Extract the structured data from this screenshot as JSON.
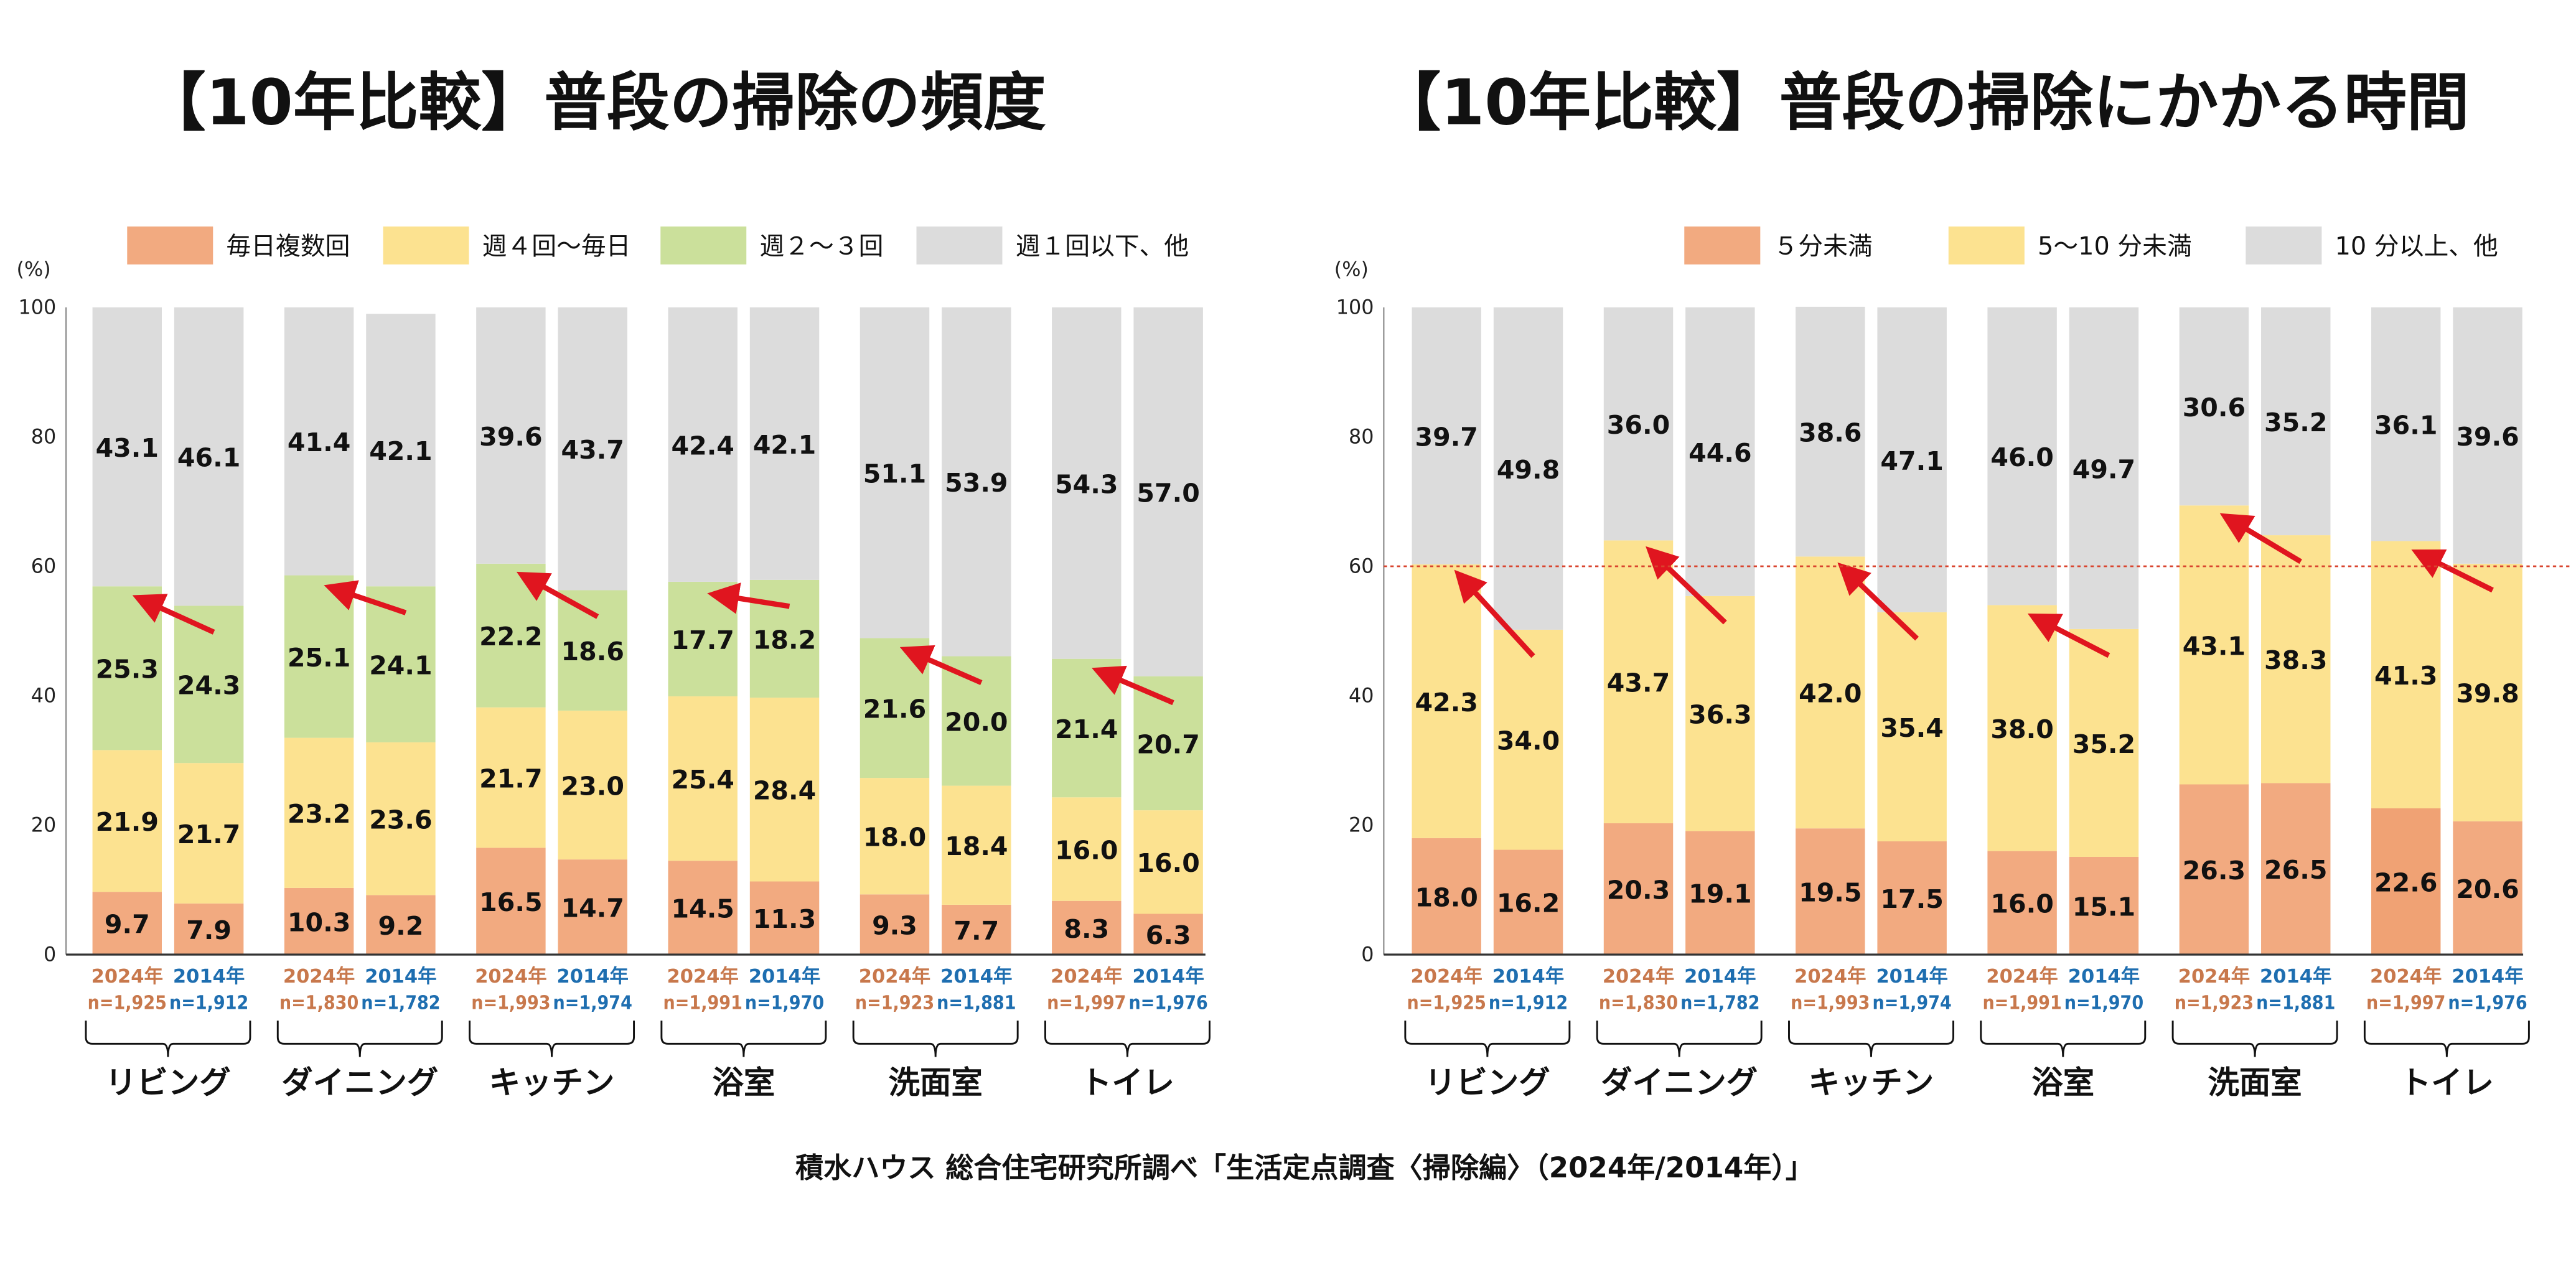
{
  "footer": "積水ハウス 総合住宅研究所調べ「生活定点調査〈掃除編〉（2024年/2014年）」",
  "chart_data": [
    {
      "type": "bar",
      "stacked": true,
      "title": "【10年比較】普段の掃除の頻度",
      "yunit": "(%)",
      "ylim": [
        0,
        100
      ],
      "yticks": [
        0,
        20,
        40,
        60,
        80,
        100
      ],
      "legend_position": "top",
      "series": [
        {
          "name": "毎日複数回",
          "color": "#F2AA80"
        },
        {
          "name": "週４回〜毎日",
          "color": "#FCE290"
        },
        {
          "name": "週２〜３回",
          "color": "#CBE09B"
        },
        {
          "name": "週１回以下、他",
          "color": "#DCDCDC"
        }
      ],
      "groups": [
        {
          "category": "リビング",
          "bars": [
            {
              "year": "2024年",
              "n": "n=1,925",
              "values": [
                9.7,
                21.9,
                25.3,
                43.1
              ]
            },
            {
              "year": "2014年",
              "n": "n=1,912",
              "values": [
                7.9,
                21.7,
                24.3,
                46.1
              ]
            }
          ]
        },
        {
          "category": "ダイニング",
          "bars": [
            {
              "year": "2024年",
              "n": "n=1,830",
              "values": [
                10.3,
                23.2,
                25.1,
                41.4
              ]
            },
            {
              "year": "2014年",
              "n": "n=1,782",
              "values": [
                9.2,
                23.6,
                24.1,
                42.1
              ]
            }
          ]
        },
        {
          "category": "キッチン",
          "bars": [
            {
              "year": "2024年",
              "n": "n=1,993",
              "values": [
                16.5,
                21.7,
                22.2,
                39.6
              ]
            },
            {
              "year": "2014年",
              "n": "n=1,974",
              "values": [
                14.7,
                23.0,
                18.6,
                43.7
              ]
            }
          ]
        },
        {
          "category": "浴室",
          "bars": [
            {
              "year": "2024年",
              "n": "n=1,991",
              "values": [
                14.5,
                25.4,
                17.7,
                42.4
              ]
            },
            {
              "year": "2014年",
              "n": "n=1,970",
              "values": [
                11.3,
                28.4,
                18.2,
                42.1
              ]
            }
          ]
        },
        {
          "category": "洗面室",
          "bars": [
            {
              "year": "2024年",
              "n": "n=1,923",
              "values": [
                9.3,
                18.0,
                21.6,
                51.1
              ]
            },
            {
              "year": "2014年",
              "n": "n=1,881",
              "values": [
                7.7,
                18.4,
                20.0,
                53.9
              ]
            }
          ]
        },
        {
          "category": "トイレ",
          "bars": [
            {
              "year": "2024年",
              "n": "n=1,997",
              "values": [
                8.3,
                16.0,
                21.4,
                54.3
              ]
            },
            {
              "year": "2014年",
              "n": "n=1,976",
              "values": [
                6.3,
                16.0,
                20.7,
                57.0
              ]
            }
          ]
        }
      ],
      "year_colors": {
        "2024": "#C8784C",
        "2014": "#1E6EB0"
      },
      "arrow_color": "#E0151F"
    },
    {
      "type": "bar",
      "stacked": true,
      "title": "【10年比較】普段の掃除にかかる時間",
      "yunit": "(%)",
      "ylim": [
        0,
        100
      ],
      "yticks": [
        0,
        20,
        40,
        60,
        80,
        100
      ],
      "legend_position": "top",
      "reference_line": 60,
      "series": [
        {
          "name": "５分未満",
          "color": "#F2AA80"
        },
        {
          "name": "5〜10 分未満",
          "color": "#FCE290"
        },
        {
          "name": "10 分以上、他",
          "color": "#DCDCDC"
        }
      ],
      "groups": [
        {
          "category": "リビング",
          "bars": [
            {
              "year": "2024年",
              "n": "n=1,925",
              "values": [
                18.0,
                42.3,
                39.7
              ]
            },
            {
              "year": "2014年",
              "n": "n=1,912",
              "values": [
                16.2,
                34.0,
                49.8
              ]
            }
          ]
        },
        {
          "category": "ダイニング",
          "bars": [
            {
              "year": "2024年",
              "n": "n=1,830",
              "values": [
                20.3,
                43.7,
                36.0
              ]
            },
            {
              "year": "2014年",
              "n": "n=1,782",
              "values": [
                19.1,
                36.3,
                44.6
              ]
            }
          ]
        },
        {
          "category": "キッチン",
          "bars": [
            {
              "year": "2024年",
              "n": "n=1,993",
              "values": [
                19.5,
                42.0,
                38.6
              ]
            },
            {
              "year": "2014年",
              "n": "n=1,974",
              "values": [
                17.5,
                35.4,
                47.1
              ]
            }
          ]
        },
        {
          "category": "浴室",
          "bars": [
            {
              "year": "2024年",
              "n": "n=1,991",
              "values": [
                16.0,
                38.0,
                46.0
              ]
            },
            {
              "year": "2014年",
              "n": "n=1,970",
              "values": [
                15.1,
                35.2,
                49.7
              ]
            }
          ]
        },
        {
          "category": "洗面室",
          "bars": [
            {
              "year": "2024年",
              "n": "n=1,923",
              "values": [
                26.3,
                43.1,
                30.6
              ]
            },
            {
              "year": "2014年",
              "n": "n=1,881",
              "values": [
                26.5,
                38.3,
                35.2
              ]
            }
          ]
        },
        {
          "category": "トイレ",
          "bars": [
            {
              "year": "2024年",
              "n": "n=1,997",
              "values": [
                22.6,
                41.3,
                36.1
              ]
            },
            {
              "year": "2014年",
              "n": "n=1,976",
              "values": [
                20.6,
                39.8,
                39.6
              ]
            }
          ]
        }
      ],
      "year_colors": {
        "2024": "#C8784C",
        "2014": "#1E6EB0"
      },
      "arrow_color": "#E0151F"
    }
  ]
}
